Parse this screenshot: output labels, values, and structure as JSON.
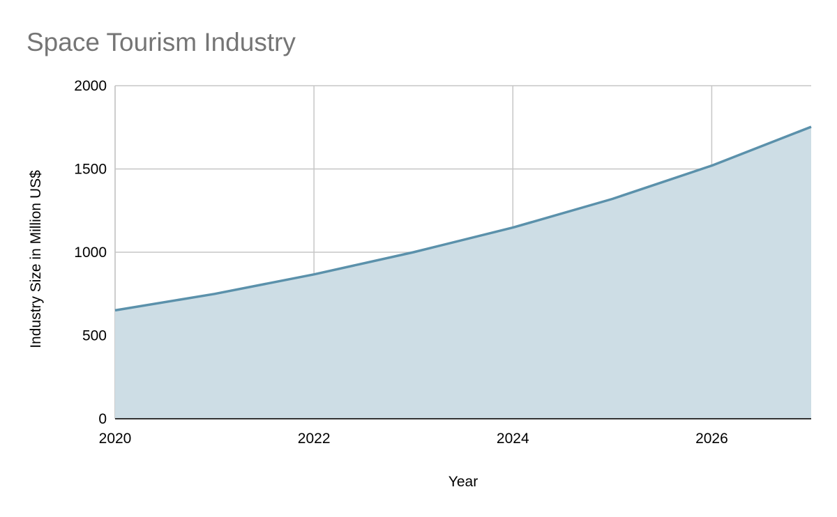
{
  "chart_data": {
    "type": "area",
    "title": "Space Tourism Industry",
    "xlabel": "Year",
    "ylabel": "Industry Size in Million US$",
    "x": [
      2020,
      2021,
      2022,
      2023,
      2024,
      2025,
      2026,
      2027
    ],
    "series": [
      {
        "values": [
          651,
          750,
          867,
          1000,
          1148,
          1320,
          1520,
          1753
        ]
      }
    ],
    "xlim": [
      2020,
      2027
    ],
    "ylim": [
      0,
      2000
    ],
    "x_ticks": [
      "2020",
      "2022",
      "2024",
      "2026"
    ],
    "y_ticks": [
      "0",
      "500",
      "1000",
      "1500",
      "2000"
    ],
    "grid": true,
    "colors": {
      "line": "#5b91ab",
      "fill": "#cddde5",
      "grid": "#c6c6c6",
      "baseline": "#333333"
    }
  }
}
